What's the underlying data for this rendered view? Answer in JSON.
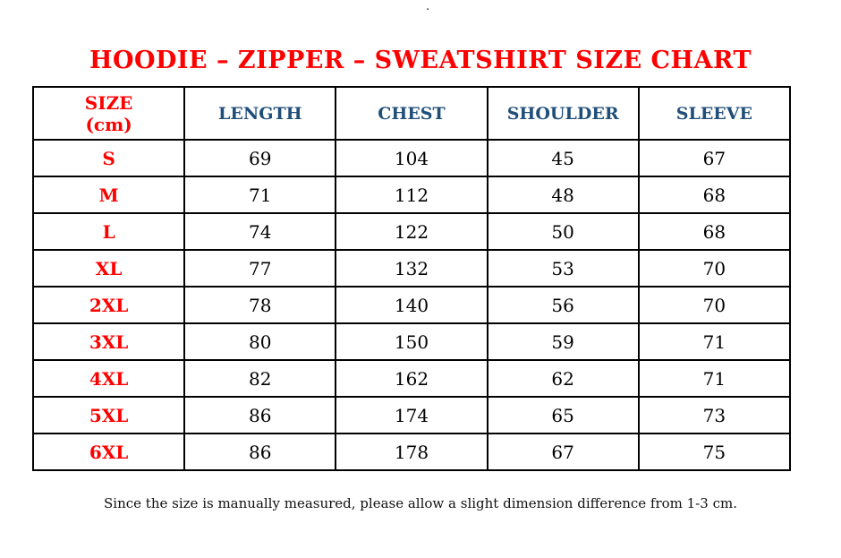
{
  "page": {
    "stray_dot": ".",
    "title": "HOODIE – ZIPPER – SWEATSHIRT SIZE CHART",
    "footnote": "Since the size is manually measured, please allow a slight dimension difference from 1-3 cm."
  },
  "table": {
    "size_header_line1": "SIZE",
    "size_header_line2": "(cm)",
    "measure_headers": [
      "LENGTH",
      "CHEST",
      "SHOULDER",
      "SLEEVE"
    ],
    "rows": [
      {
        "size": "S",
        "length": "69",
        "chest": "104",
        "shoulder": "45",
        "sleeve": "67"
      },
      {
        "size": "M",
        "length": "71",
        "chest": "112",
        "shoulder": "48",
        "sleeve": "68"
      },
      {
        "size": "L",
        "length": "74",
        "chest": "122",
        "shoulder": "50",
        "sleeve": "68"
      },
      {
        "size": "XL",
        "length": "77",
        "chest": "132",
        "shoulder": "53",
        "sleeve": "70"
      },
      {
        "size": "2XL",
        "length": "78",
        "chest": "140",
        "shoulder": "56",
        "sleeve": "70"
      },
      {
        "size": "3XL",
        "length": "80",
        "chest": "150",
        "shoulder": "59",
        "sleeve": "71"
      },
      {
        "size": "4XL",
        "length": "82",
        "chest": "162",
        "shoulder": "62",
        "sleeve": "71"
      },
      {
        "size": "5XL",
        "length": "86",
        "chest": "174",
        "shoulder": "65",
        "sleeve": "73"
      },
      {
        "size": "6XL",
        "length": "86",
        "chest": "178",
        "shoulder": "67",
        "sleeve": "75"
      }
    ]
  },
  "chart_data": {
    "type": "table",
    "title": "HOODIE – ZIPPER – SWEATSHIRT SIZE CHART",
    "unit": "cm",
    "columns": [
      "SIZE (cm)",
      "LENGTH",
      "CHEST",
      "SHOULDER",
      "SLEEVE"
    ],
    "rows": [
      [
        "S",
        69,
        104,
        45,
        67
      ],
      [
        "M",
        71,
        112,
        48,
        68
      ],
      [
        "L",
        74,
        122,
        50,
        68
      ],
      [
        "XL",
        77,
        132,
        53,
        70
      ],
      [
        "2XL",
        78,
        140,
        56,
        70
      ],
      [
        "3XL",
        80,
        150,
        59,
        71
      ],
      [
        "4XL",
        82,
        162,
        62,
        71
      ],
      [
        "5XL",
        86,
        174,
        65,
        73
      ],
      [
        "6XL",
        86,
        178,
        67,
        75
      ]
    ],
    "footnote": "Since the size is manually measured, please allow a slight dimension difference from 1-3 cm."
  },
  "colors": {
    "title_red": "#fe0000",
    "size_red": "#fe0000",
    "header_blue": "#1f4e79",
    "value_black": "#000000",
    "border_black": "#000000"
  }
}
